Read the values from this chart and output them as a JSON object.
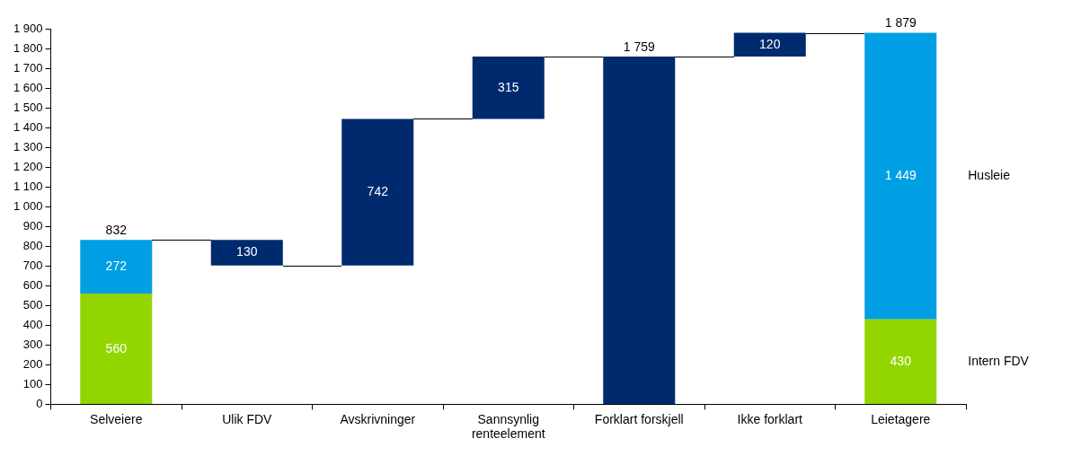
{
  "chart_data": {
    "type": "bar",
    "stacked": true,
    "legend": false,
    "categories": [
      "Selveiere",
      "Ulik FDV",
      "Avskrivninger",
      "Sannsynlig renteelement",
      "Forklart forskjell",
      "Ikke forklart",
      "Leietagere"
    ],
    "series": [
      {
        "name": "Intern FDV",
        "color": "#93d500",
        "values": [
          560,
          null,
          null,
          null,
          null,
          null,
          430
        ],
        "value_labels": [
          "560",
          null,
          null,
          null,
          null,
          null,
          "430"
        ]
      },
      {
        "name": "Husleie",
        "color": "#009fe3",
        "values": [
          272,
          null,
          null,
          null,
          null,
          null,
          1449
        ],
        "value_labels": [
          "272",
          null,
          null,
          null,
          null,
          null,
          "1 449"
        ]
      },
      {
        "color": "#002a6e",
        "values": [
          null,
          130,
          742,
          315,
          1759,
          120,
          null
        ],
        "base": [
          null,
          702,
          702,
          1444,
          0,
          1759,
          null
        ],
        "value_labels": [
          null,
          "130",
          "742",
          "315",
          null,
          "120",
          null
        ]
      }
    ],
    "totals": [
      "832",
      null,
      null,
      null,
      "1 759",
      null,
      "1 879"
    ],
    "ylim": [
      0,
      1900
    ],
    "yticks": [
      0,
      100,
      200,
      300,
      400,
      500,
      600,
      700,
      800,
      900,
      {
        "value": 1000,
        "label": "1 000"
      },
      {
        "value": 1100,
        "label": "1 100"
      },
      {
        "value": 1200,
        "label": "1 200"
      },
      {
        "value": 1300,
        "label": "1 300"
      },
      {
        "value": 1400,
        "label": "1 400"
      },
      {
        "value": 1500,
        "label": "1 500"
      },
      {
        "value": 1600,
        "label": "1 600"
      },
      {
        "value": 1700,
        "label": "1 700"
      },
      {
        "value": 1800,
        "label": "1 800"
      },
      {
        "value": 1900,
        "label": "1 900"
      }
    ]
  }
}
